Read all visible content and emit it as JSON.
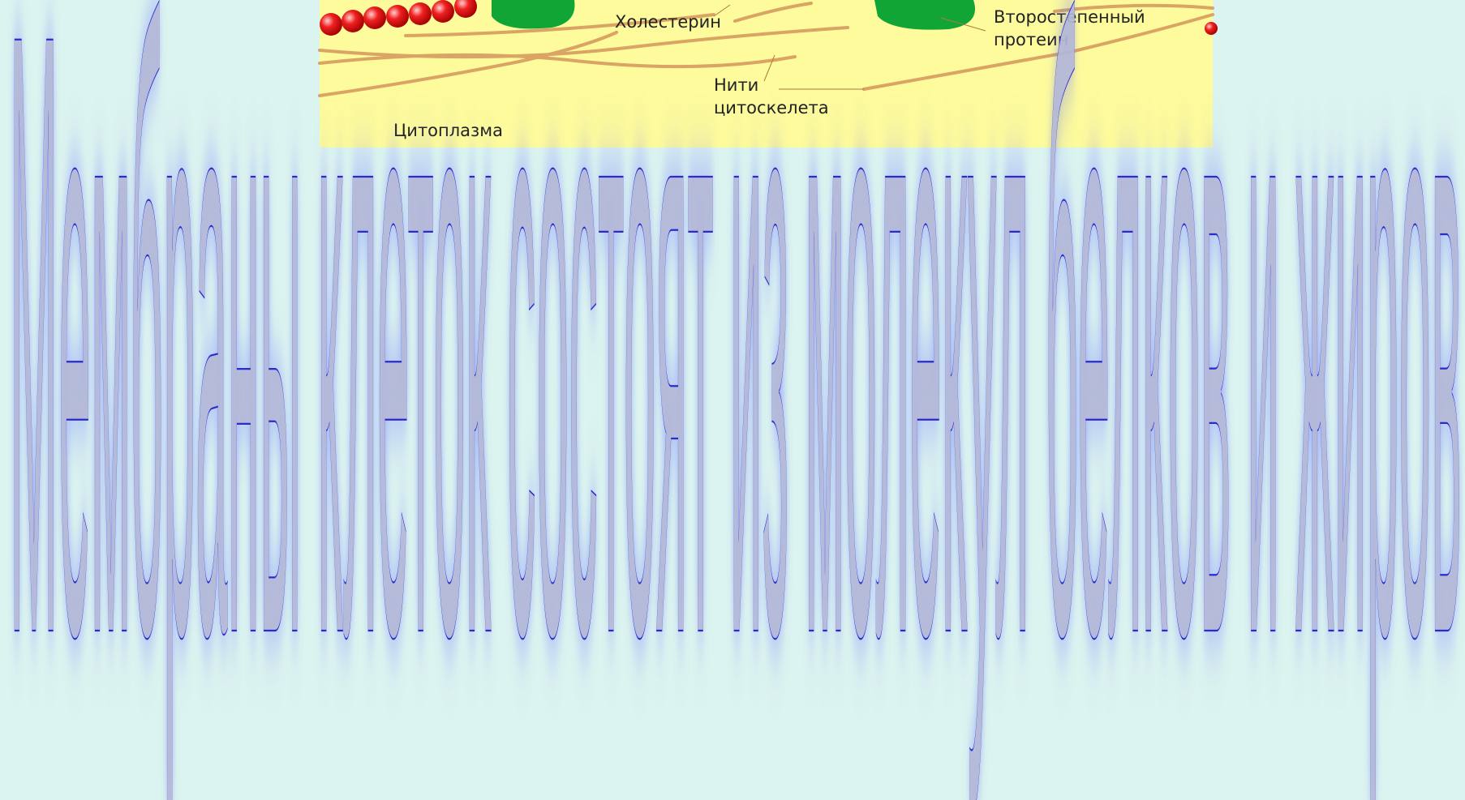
{
  "diagram": {
    "labels": {
      "cholesterol": "Холестерин",
      "protein": [
        "Второстепенный",
        "протеин"
      ],
      "filaments": [
        "Нити",
        "цитоскелета"
      ],
      "cytoplasm": "Цитоплазма"
    }
  },
  "headline": "Мембраны клеток состоят из молекул белков и жиров"
}
